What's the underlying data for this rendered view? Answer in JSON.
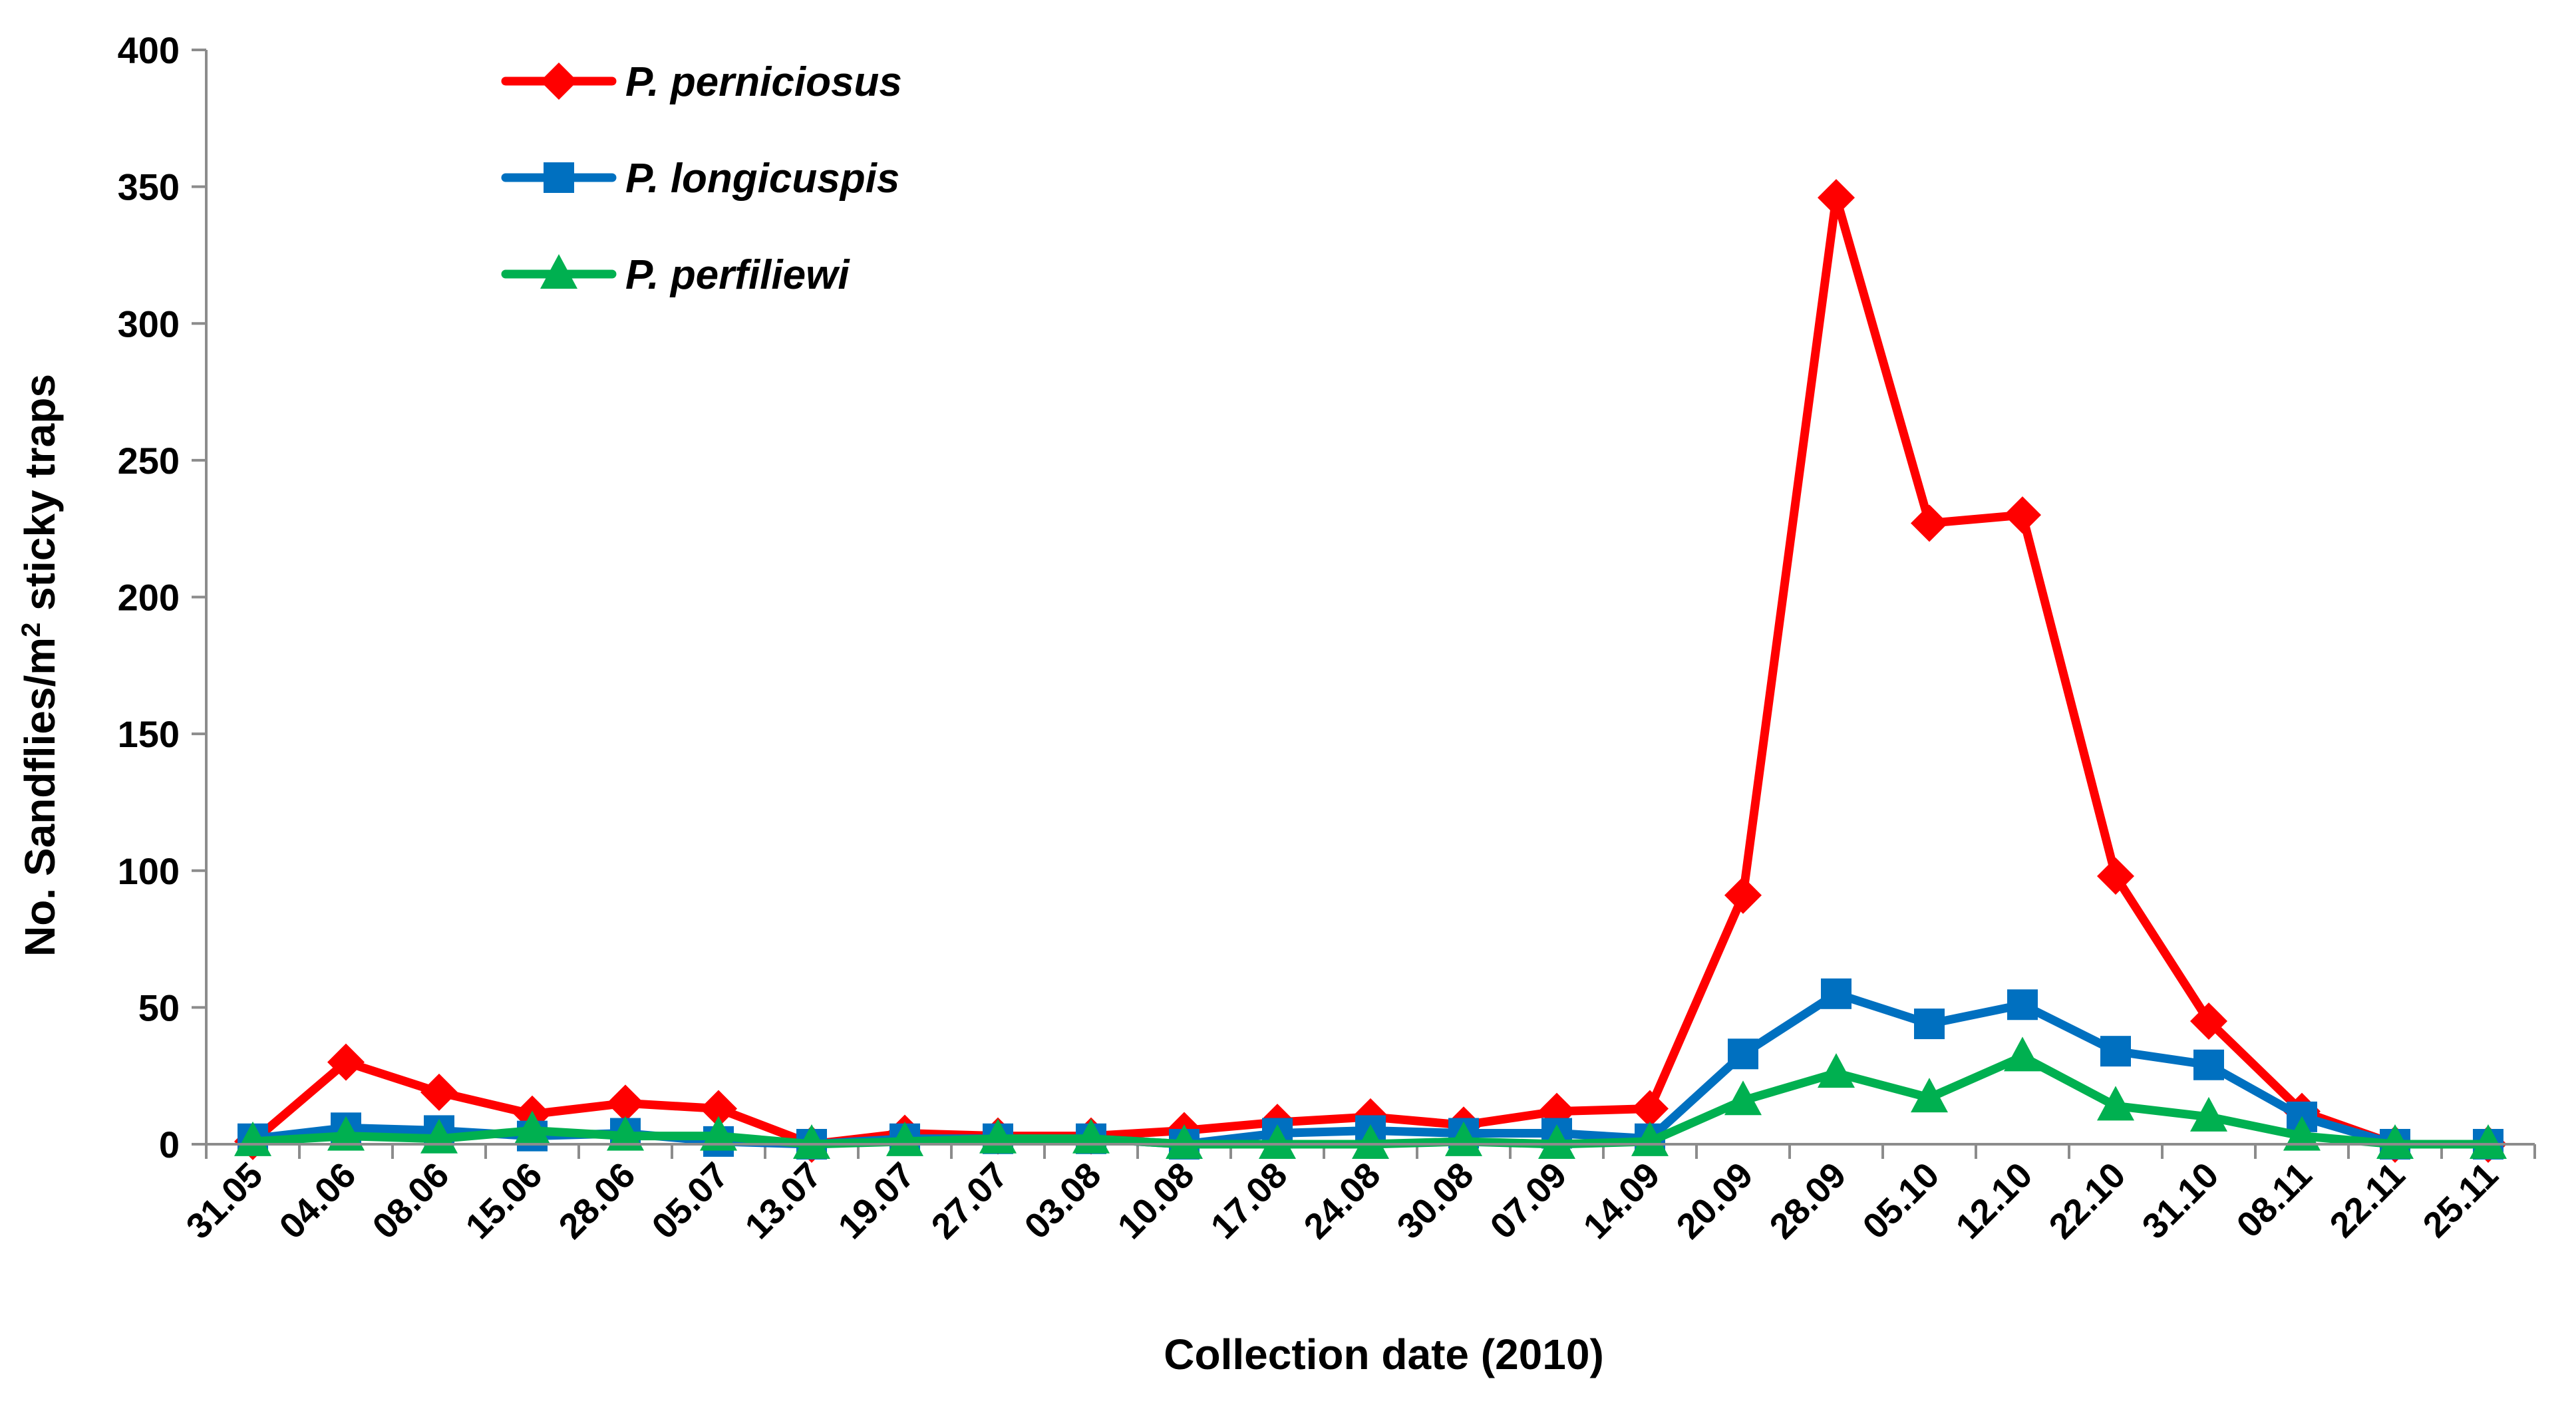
{
  "chart_data": {
    "type": "line",
    "title": "",
    "xlabel": "Collection date (2010)",
    "ylabel_prefix": "No. Sandflies/m",
    "ylabel_superscript": "2",
    "ylabel_suffix": " sticky traps",
    "ylim": [
      0,
      400
    ],
    "yticks": [
      0,
      50,
      100,
      150,
      200,
      250,
      300,
      350,
      400
    ],
    "categories": [
      "31.05",
      "04.06",
      "08.06",
      "15.06",
      "28.06",
      "05.07",
      "13.07",
      "19.07",
      "27.07",
      "03.08",
      "10.08",
      "17.08",
      "24.08",
      "30.08",
      "07.09",
      "14.09",
      "20.09",
      "28.09",
      "05.10",
      "12.10",
      "22.10",
      "31.10",
      "08.11",
      "22.11",
      "25.11"
    ],
    "legend_position": "top-left",
    "series": [
      {
        "name": "P. perniciosus",
        "color": "#ff0000",
        "marker": "diamond",
        "values": [
          1,
          30,
          19,
          11,
          15,
          13,
          0,
          4,
          3,
          3,
          5,
          8,
          10,
          7,
          12,
          13,
          91,
          346,
          227,
          230,
          98,
          45,
          12,
          0,
          0
        ]
      },
      {
        "name": "P. longicuspis",
        "color": "#0070c0",
        "marker": "square",
        "values": [
          2,
          6,
          5,
          3,
          4,
          1,
          0,
          2,
          2,
          2,
          0,
          4,
          5,
          4,
          4,
          2,
          33,
          55,
          44,
          51,
          34,
          29,
          10,
          0,
          0
        ]
      },
      {
        "name": "P. perfiliewi",
        "color": "#00b050",
        "marker": "triangle",
        "values": [
          1,
          3,
          2,
          5,
          3,
          3,
          0,
          1,
          2,
          2,
          0,
          0,
          0,
          1,
          0,
          1,
          16,
          26,
          17,
          32,
          14,
          10,
          3,
          0,
          0
        ]
      }
    ]
  }
}
